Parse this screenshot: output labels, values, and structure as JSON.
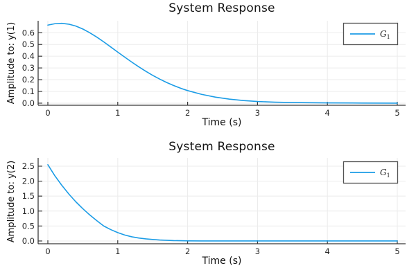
{
  "styles": {
    "series_color": "#1B9CE6",
    "grid_color": "#EBEBEB",
    "axis_color": "#383838",
    "tick_text_color": "#262626",
    "legend_border_color": "#525252",
    "legend_text_color": "#1A1A1A",
    "background": "#FFFFFF"
  },
  "chart_data": [
    {
      "type": "line",
      "title": "System Response",
      "xlabel": "Time (s)",
      "ylabel": "Amplitude to: y(1)",
      "grid": true,
      "legend_position": "top-right",
      "legend_entries": [
        "G₁"
      ],
      "xlim": [
        -0.139,
        5.119
      ],
      "ylim": [
        -0.018,
        0.702
      ],
      "xticks": [
        0,
        1,
        2,
        3,
        4,
        5
      ],
      "xtick_labels": [
        "0",
        "1",
        "2",
        "3",
        "4",
        "5"
      ],
      "yticks": [
        0.0,
        0.1,
        0.2,
        0.3,
        0.4,
        0.5,
        0.6
      ],
      "ytick_labels": [
        "0.0",
        "0.1",
        "0.2",
        "0.3",
        "0.4",
        "0.5",
        "0.6"
      ],
      "series": [
        {
          "name": "G_1",
          "legend_main": "G",
          "legend_sub": "1",
          "color": "#1B9CE6",
          "x": [
            0,
            0.1,
            0.2,
            0.3,
            0.4,
            0.5,
            0.6,
            0.7,
            0.8,
            0.9,
            1.0,
            1.1,
            1.2,
            1.3,
            1.4,
            1.5,
            1.6,
            1.7,
            1.8,
            1.9,
            2.0,
            2.2,
            2.4,
            2.6,
            2.8,
            3.0,
            3.25,
            3.5,
            4.0,
            4.5,
            5.0
          ],
          "y": [
            0.665,
            0.677,
            0.68,
            0.673,
            0.657,
            0.632,
            0.6,
            0.563,
            0.522,
            0.479,
            0.435,
            0.392,
            0.35,
            0.31,
            0.272,
            0.237,
            0.205,
            0.176,
            0.15,
            0.127,
            0.107,
            0.075,
            0.051,
            0.034,
            0.022,
            0.014,
            0.008,
            0.005,
            0.002,
            0.001,
            0.0
          ]
        }
      ]
    },
    {
      "type": "line",
      "title": "System Response",
      "xlabel": "Time (s)",
      "ylabel": "Amplitude to: y(2)",
      "grid": true,
      "legend_position": "top-right",
      "legend_entries": [
        "G₁"
      ],
      "xlim": [
        -0.139,
        5.119
      ],
      "ylim": [
        -0.093,
        2.777
      ],
      "xticks": [
        0,
        1,
        2,
        3,
        4,
        5
      ],
      "xtick_labels": [
        "0",
        "1",
        "2",
        "3",
        "4",
        "5"
      ],
      "yticks": [
        0.0,
        0.5,
        1.0,
        1.5,
        2.0,
        2.5
      ],
      "ytick_labels": [
        "0.0",
        "0.5",
        "1.0",
        "1.5",
        "2.0",
        "2.5"
      ],
      "series": [
        {
          "name": "G_1",
          "legend_main": "G",
          "legend_sub": "1",
          "color": "#1B9CE6",
          "x": [
            0,
            0.1,
            0.2,
            0.3,
            0.4,
            0.5,
            0.6,
            0.7,
            0.8,
            0.9,
            1.0,
            1.1,
            1.2,
            1.3,
            1.4,
            1.5,
            1.6,
            1.8,
            2.0,
            2.2,
            2.5,
            3.0,
            3.5,
            4.0,
            4.5,
            5.0
          ],
          "y": [
            2.55,
            2.18,
            1.86,
            1.57,
            1.31,
            1.08,
            0.87,
            0.68,
            0.5,
            0.38,
            0.28,
            0.2,
            0.14,
            0.1,
            0.07,
            0.05,
            0.032,
            0.013,
            0.005,
            0.002,
            0.0,
            0.0,
            0.0,
            0.0,
            0.0,
            0.0
          ]
        }
      ]
    }
  ]
}
